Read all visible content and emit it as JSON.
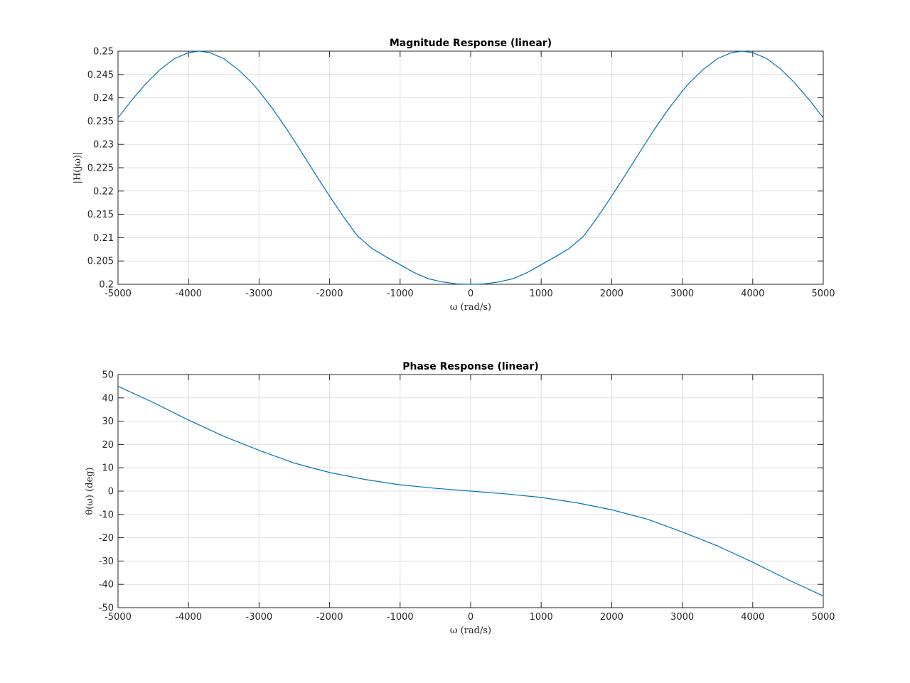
{
  "chart_data": [
    {
      "type": "line",
      "title": "Magnitude Response (linear)",
      "xlabel": "ω (rad/s)",
      "ylabel": "|H(jω)|",
      "xlim": [
        -5000,
        5000
      ],
      "ylim": [
        0.2,
        0.25
      ],
      "xticks": [
        -5000,
        -4000,
        -3000,
        -2000,
        -1000,
        0,
        1000,
        2000,
        3000,
        4000,
        5000
      ],
      "yticks": [
        0.2,
        0.205,
        0.21,
        0.215,
        0.22,
        0.225,
        0.23,
        0.235,
        0.24,
        0.245,
        0.25
      ],
      "xtick_labels": [
        "-5000",
        "-4000",
        "-3000",
        "-2000",
        "-1000",
        "0",
        "1000",
        "2000",
        "3000",
        "4000",
        "5000"
      ],
      "ytick_labels": [
        "0.2",
        "0.205",
        "0.21",
        "0.215",
        "0.22",
        "0.225",
        "0.23",
        "0.235",
        "0.24",
        "0.245",
        "0.25"
      ],
      "grid": true,
      "color": "#0072bd",
      "series": [
        {
          "x": [
            -5000,
            -4800,
            -4600,
            -4400,
            -4200,
            -4000,
            -3850,
            -3700,
            -3500,
            -3300,
            -3100,
            -3000,
            -2800,
            -2600,
            -2400,
            -2200,
            -2000,
            -1800,
            -1600,
            -1400,
            -1200,
            -1000,
            -800,
            -600,
            -400,
            -200,
            0,
            200,
            400,
            600,
            800,
            1000,
            1200,
            1400,
            1600,
            1800,
            2000,
            2200,
            2400,
            2600,
            2800,
            3000,
            3100,
            3300,
            3500,
            3700,
            3850,
            4000,
            4200,
            4400,
            4600,
            4800,
            5000
          ],
          "values": [
            0.2357,
            0.2396,
            0.2431,
            0.2461,
            0.2484,
            0.2497,
            0.25,
            0.2497,
            0.2484,
            0.2461,
            0.2432,
            0.2414,
            0.2375,
            0.2331,
            0.2284,
            0.2236,
            0.2189,
            0.2144,
            0.2103,
            0.2077,
            0.2059,
            0.2042,
            0.2025,
            0.2012,
            0.2005,
            0.2001,
            0.2,
            0.2001,
            0.2005,
            0.2012,
            0.2025,
            0.2042,
            0.2059,
            0.2077,
            0.2103,
            0.2144,
            0.2189,
            0.2236,
            0.2284,
            0.2331,
            0.2375,
            0.2414,
            0.2432,
            0.2461,
            0.2484,
            0.2497,
            0.25,
            0.2497,
            0.2484,
            0.2461,
            0.2431,
            0.2396,
            0.2357
          ]
        }
      ]
    },
    {
      "type": "line",
      "title": "Phase Response (linear)",
      "xlabel": "ω (rad/s)",
      "ylabel": "θ(ω) (deg)",
      "xlim": [
        -5000,
        5000
      ],
      "ylim": [
        -50,
        50
      ],
      "xticks": [
        -5000,
        -4000,
        -3000,
        -2000,
        -1000,
        0,
        1000,
        2000,
        3000,
        4000,
        5000
      ],
      "yticks": [
        -50,
        -40,
        -30,
        -20,
        -10,
        0,
        10,
        20,
        30,
        40,
        50
      ],
      "xtick_labels": [
        "-5000",
        "-4000",
        "-3000",
        "-2000",
        "-1000",
        "0",
        "1000",
        "2000",
        "3000",
        "4000",
        "5000"
      ],
      "ytick_labels": [
        "-50",
        "-40",
        "-30",
        "-20",
        "-10",
        "0",
        "10",
        "20",
        "30",
        "40",
        "50"
      ],
      "grid": true,
      "color": "#0072bd",
      "series": [
        {
          "x": [
            -5000,
            -4500,
            -4000,
            -3500,
            -3000,
            -2500,
            -2000,
            -1500,
            -1000,
            -500,
            0,
            500,
            1000,
            1500,
            2000,
            2500,
            3000,
            3500,
            4000,
            4500,
            5000
          ],
          "values": [
            45,
            38,
            30.5,
            23.5,
            17.5,
            12,
            8,
            5,
            2.7,
            1.2,
            0,
            -1.2,
            -2.7,
            -5,
            -8,
            -12,
            -17.5,
            -23.5,
            -30.5,
            -38,
            -45
          ]
        }
      ]
    }
  ]
}
